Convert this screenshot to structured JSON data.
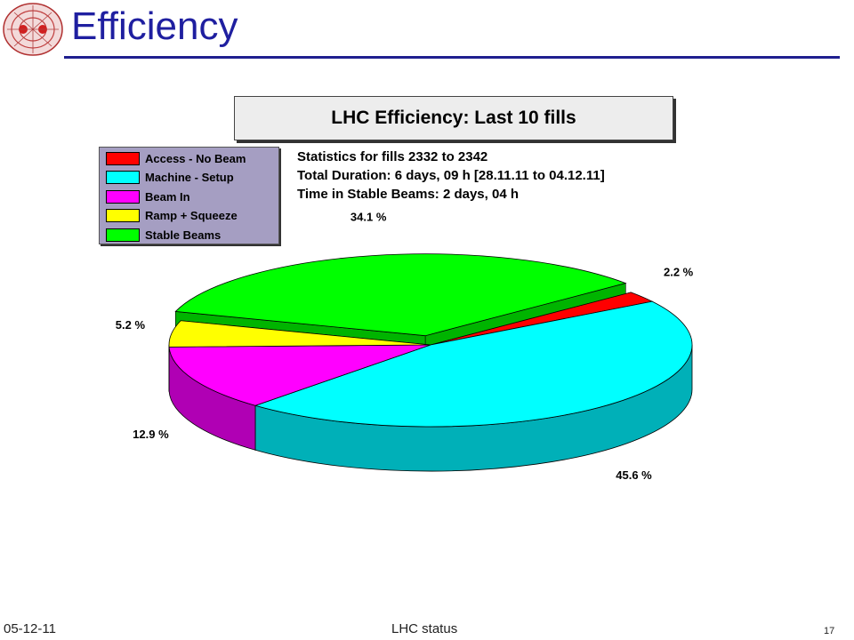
{
  "slide": {
    "title": "Efficiency",
    "footer_date": "05-12-11",
    "footer_center": "LHC status",
    "page_number": "17"
  },
  "logo": {
    "name": "lhc-logo-icon"
  },
  "colors": {
    "title": "#1f1fa0",
    "rule": "#1f1f8f",
    "legend_bg": "#a59ec2"
  },
  "stats": {
    "line1": "Statistics for fills 2332 to 2342",
    "line2": "Total Duration: 6 days, 09 h [28.11.11 to 04.12.11]",
    "line3": "Time in Stable Beams: 2 days, 04 h"
  },
  "chart_data": {
    "type": "pie",
    "title": "LHC Efficiency: Last 10 fills",
    "legend_position": "top-left",
    "slices": [
      {
        "name": "Access - No Beam",
        "value": 2.2,
        "label": "2.2 %",
        "color": "#ff0000",
        "side": "#c00000",
        "exploded": false
      },
      {
        "name": "Machine - Setup",
        "value": 45.6,
        "label": "45.6 %",
        "color": "#00ffff",
        "side": "#00b0b8",
        "exploded": false
      },
      {
        "name": "Beam In",
        "value": 12.9,
        "label": "12.9 %",
        "color": "#ff00ff",
        "side": "#b000b4",
        "exploded": false
      },
      {
        "name": "Ramp + Squeeze",
        "value": 5.2,
        "label": "5.2 %",
        "color": "#ffff00",
        "side": "#b4b400",
        "exploded": false
      },
      {
        "name": "Stable Beams",
        "value": 34.1,
        "label": "34.1 %",
        "color": "#00ff00",
        "side": "#00b400",
        "exploded": true
      }
    ]
  }
}
